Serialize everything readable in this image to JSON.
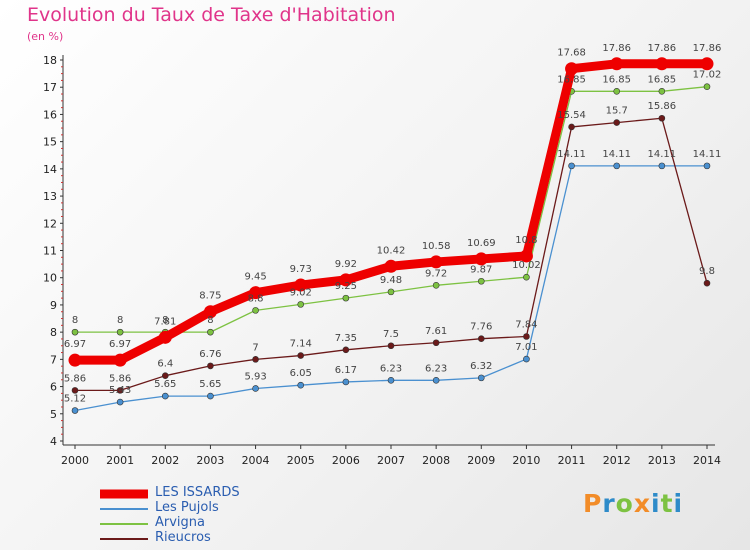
{
  "chart_data": {
    "type": "line",
    "title": "Evolution du Taux de Taxe d'Habitation",
    "subtitle": "(en %)",
    "x": [
      "2000",
      "2001",
      "2002",
      "2003",
      "2004",
      "2005",
      "2006",
      "2007",
      "2008",
      "2009",
      "2010",
      "2011",
      "2012",
      "2013",
      "2014"
    ],
    "ylim": [
      4,
      18
    ],
    "yticks": [
      4,
      5,
      6,
      7,
      8,
      9,
      10,
      11,
      12,
      13,
      14,
      15,
      16,
      17,
      18
    ],
    "grid": false,
    "legend_position": "bottom-left",
    "series": [
      {
        "name": "LES ISSARDS",
        "color": "#ee0000",
        "values": [
          6.97,
          6.97,
          7.81,
          8.75,
          9.45,
          9.73,
          9.92,
          10.42,
          10.58,
          10.69,
          10.8,
          17.68,
          17.86,
          17.86,
          17.86
        ],
        "labels": [
          "6.97",
          "6.97",
          "7.81",
          "8.75",
          "9.45",
          "9.73",
          "9.92",
          "10.42",
          "10.58",
          "10.69",
          "10.8",
          "17.68",
          "17.86",
          "17.86",
          "17.86"
        ]
      },
      {
        "name": "Les Pujols",
        "color": "#4a90d0",
        "values": [
          5.12,
          5.43,
          5.65,
          5.65,
          5.93,
          6.05,
          6.17,
          6.23,
          6.23,
          6.32,
          7.01,
          14.11,
          14.11,
          14.11,
          14.11
        ],
        "labels": [
          "5.12",
          "5.43",
          "5.65",
          "5.65",
          "5.93",
          "6.05",
          "6.17",
          "6.23",
          "6.23",
          "6.32",
          "7.01",
          "14.11",
          "14.11",
          "14.11",
          "14.11"
        ]
      },
      {
        "name": "Arvigna",
        "color": "#7dc242",
        "values": [
          8,
          8,
          8,
          8,
          8.8,
          9.02,
          9.25,
          9.48,
          9.72,
          9.87,
          10.02,
          16.85,
          16.85,
          16.85,
          17.02
        ],
        "labels": [
          "8",
          "8",
          "8",
          "8",
          "8.8",
          "9.02",
          "9.25",
          "9.48",
          "9.72",
          "9.87",
          "10.02",
          "16.85",
          "16.85",
          "16.85",
          "17.02"
        ]
      },
      {
        "name": "Rieucros",
        "color": "#6b1a1a",
        "values": [
          5.86,
          5.86,
          6.4,
          6.76,
          7,
          7.14,
          7.35,
          7.5,
          7.61,
          7.76,
          7.84,
          15.54,
          15.7,
          15.86,
          9.8
        ],
        "labels": [
          "5.86",
          "5.86",
          "6.4",
          "6.76",
          "7",
          "7.14",
          "7.35",
          "7.5",
          "7.61",
          "7.76",
          "7.84",
          "15.54",
          "15.7",
          "15.86",
          "9.8"
        ]
      }
    ]
  },
  "logo": {
    "text": "Proxiti",
    "letters": [
      "P",
      "r",
      "o",
      "x",
      "i",
      "t",
      "i"
    ],
    "colors": [
      "#f28c28",
      "#2e8bc9",
      "#7dc242",
      "#f28c28",
      "#2e8bc9",
      "#7dc242",
      "#2e8bc9"
    ]
  }
}
